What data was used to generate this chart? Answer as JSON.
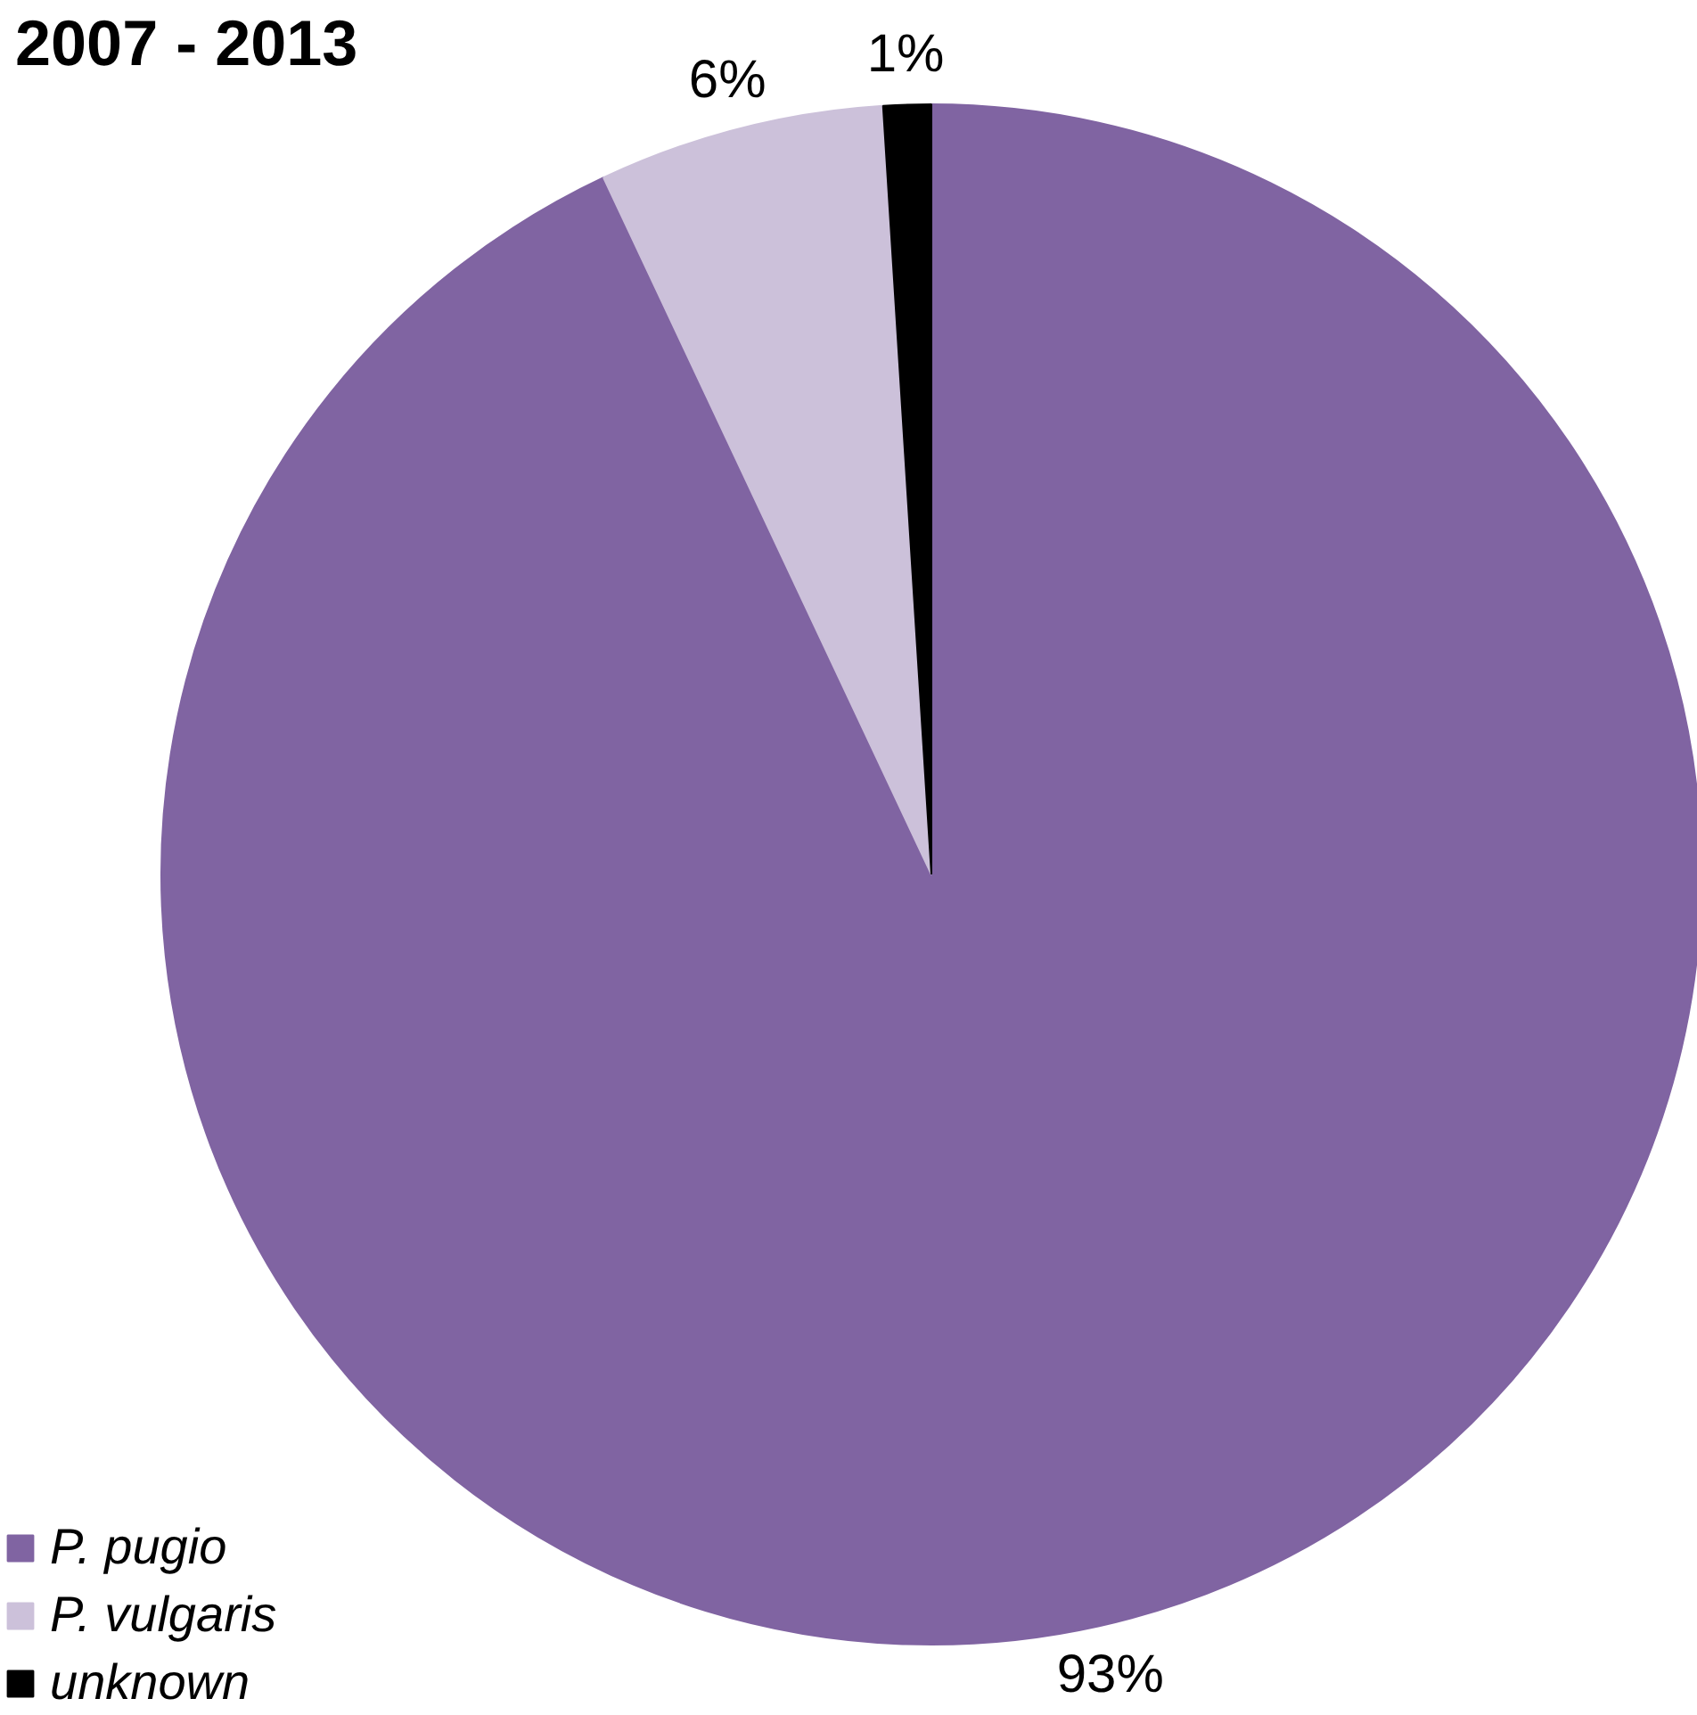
{
  "chart_data": {
    "type": "pie",
    "title": "2007 - 2013",
    "categories": [
      "P. pugio",
      "P. vulgaris",
      "unknown"
    ],
    "values": [
      93,
      6,
      1
    ],
    "colors": [
      "#8064a2",
      "#ccc1da",
      "#000000"
    ],
    "value_labels": [
      "93%",
      "6%",
      "1%"
    ],
    "legend": "bottom left"
  }
}
